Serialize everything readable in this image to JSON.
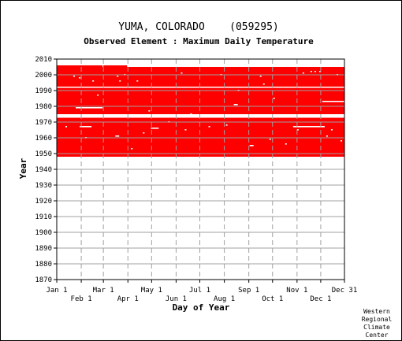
{
  "chart_data": {
    "type": "heatmap",
    "title": "YUMA, COLORADO    (059295)",
    "subtitle": "Observed Element : Maximum Daily Temperature",
    "xlabel": "Day of Year",
    "ylabel": "Year",
    "xlim_day_of_year": [
      1,
      365
    ],
    "ylim": [
      1870,
      2010
    ],
    "y_ticks": [
      1870,
      1880,
      1890,
      1900,
      1910,
      1920,
      1930,
      1940,
      1950,
      1960,
      1970,
      1980,
      1990,
      2000,
      2010
    ],
    "x_ticks_top_row": [
      {
        "label": "Jan 1",
        "day": 1
      },
      {
        "label": "Mar 1",
        "day": 60
      },
      {
        "label": "May 1",
        "day": 121
      },
      {
        "label": "Jul 1",
        "day": 182
      },
      {
        "label": "Sep 1",
        "day": 244
      },
      {
        "label": "Nov 1",
        "day": 305
      },
      {
        "label": "Dec 31",
        "day": 365
      }
    ],
    "x_ticks_bottom_row": [
      {
        "label": "Feb 1",
        "day": 32
      },
      {
        "label": "Apr 1",
        "day": 91
      },
      {
        "label": "Jun 1",
        "day": 152
      },
      {
        "label": "Aug 1",
        "day": 213
      },
      {
        "label": "Oct 1",
        "day": 274
      },
      {
        "label": "Dec 1",
        "day": 335
      }
    ],
    "grid": true,
    "data_color": "#ff0000",
    "observed_periods": [
      {
        "day_start": 1,
        "day_end": 365,
        "year_start": 1948,
        "year_end": 1972
      },
      {
        "day_start": 1,
        "day_end": 365,
        "year_start": 1975,
        "year_end": 2004
      }
    ],
    "extended_records": [
      {
        "day_start": 60,
        "day_end": 90,
        "year_start": 2004,
        "year_end": 2006
      },
      {
        "day_start": 1,
        "day_end": 59,
        "year_start": 2004,
        "year_end": 2006
      }
    ],
    "missing_rows": [
      {
        "day_start": 1,
        "day_end": 365,
        "year": 1992
      },
      {
        "day_start": 1,
        "day_end": 365,
        "year": 1973
      }
    ],
    "missing_segments": [
      {
        "day_start": 25,
        "day_end": 59,
        "year": 1979
      },
      {
        "day_start": 30,
        "day_end": 45,
        "year": 1967
      },
      {
        "day_start": 120,
        "day_end": 130,
        "year": 1966
      },
      {
        "day_start": 245,
        "day_end": 250,
        "year": 1955
      },
      {
        "day_start": 300,
        "day_end": 340,
        "year": 1967
      },
      {
        "day_start": 337,
        "day_end": 365,
        "year": 1983
      },
      {
        "day_start": 225,
        "day_end": 230,
        "year": 1981
      },
      {
        "day_start": 75,
        "day_end": 80,
        "year": 1961
      }
    ],
    "missing_specks": [
      {
        "day": 12,
        "year": 1967
      },
      {
        "day": 22,
        "year": 1999
      },
      {
        "day": 29,
        "year": 1998
      },
      {
        "day": 46,
        "year": 1996
      },
      {
        "day": 52,
        "year": 1987
      },
      {
        "day": 37,
        "year": 1960
      },
      {
        "day": 77,
        "year": 1999
      },
      {
        "day": 80,
        "year": 1996
      },
      {
        "day": 86,
        "year": 2000
      },
      {
        "day": 102,
        "year": 1996
      },
      {
        "day": 117,
        "year": 1977
      },
      {
        "day": 158,
        "year": 2001
      },
      {
        "day": 163,
        "year": 1965
      },
      {
        "day": 193,
        "year": 1967
      },
      {
        "day": 208,
        "year": 2000
      },
      {
        "day": 215,
        "year": 1968
      },
      {
        "day": 258,
        "year": 1999
      },
      {
        "day": 262,
        "year": 1994
      },
      {
        "day": 270,
        "year": 1959
      },
      {
        "day": 305,
        "year": 1965
      },
      {
        "day": 312,
        "year": 2001
      },
      {
        "day": 322,
        "year": 2002
      },
      {
        "day": 327,
        "year": 2002
      },
      {
        "day": 333,
        "year": 2002
      },
      {
        "day": 342,
        "year": 1961
      },
      {
        "day": 348,
        "year": 1965
      },
      {
        "day": 355,
        "year": 2000
      },
      {
        "day": 360,
        "year": 1958
      },
      {
        "day": 110,
        "year": 1963
      },
      {
        "day": 142,
        "year": 1970
      },
      {
        "day": 170,
        "year": 1975
      },
      {
        "day": 290,
        "year": 1956
      },
      {
        "day": 95,
        "year": 1953
      },
      {
        "day": 230,
        "year": 1990
      },
      {
        "day": 275,
        "year": 1985
      }
    ]
  },
  "credit_lines": [
    "Western",
    "Regional",
    "Climate",
    "Center"
  ]
}
